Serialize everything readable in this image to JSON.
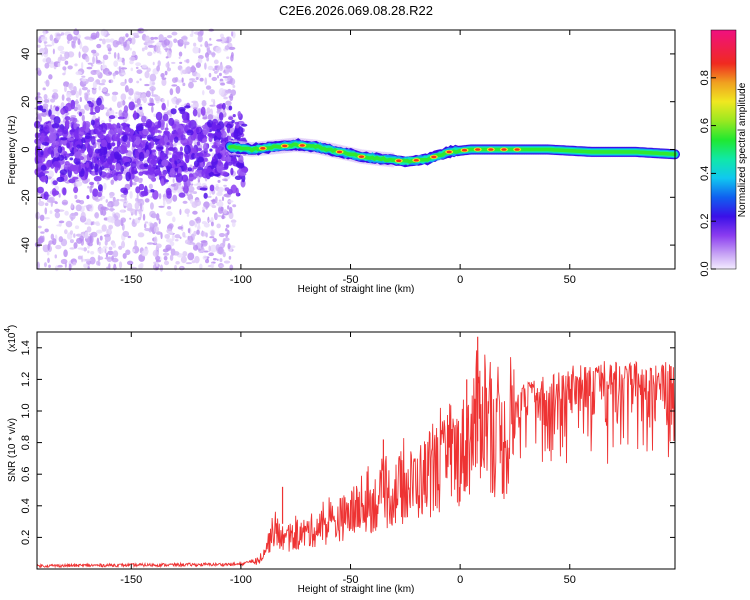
{
  "title": "C2E6.2026.069.08.28.R22",
  "chart_data": [
    {
      "type": "heatmap",
      "name": "spectrogram",
      "xlabel": "Height of straight line (km)",
      "ylabel": "Frequency (Hz)",
      "xlim": [
        -193,
        98
      ],
      "ylim": [
        -50,
        50
      ],
      "xticks": [
        -150,
        -100,
        -50,
        0,
        50
      ],
      "yticks": [
        -40,
        -20,
        0,
        20,
        40
      ],
      "colorbar": {
        "label": "Normalized spectral amplitude",
        "range": [
          0.0,
          1.0
        ],
        "ticks": [
          "0.0",
          "0.2",
          "0.4",
          "0.6",
          "0.8"
        ],
        "tick_values": [
          0.0,
          0.2,
          0.4,
          0.6,
          0.8
        ]
      },
      "ridge": {
        "description_points_x": [
          -105,
          -95,
          -85,
          -75,
          -65,
          -55,
          -45,
          -35,
          -25,
          -15,
          -5,
          5,
          15,
          25,
          40,
          60,
          80,
          98
        ],
        "description_points_freq": [
          1,
          0,
          1,
          2,
          1,
          -1,
          -3,
          -4,
          -5,
          -4,
          -1,
          0,
          0,
          0,
          0,
          -1,
          -1,
          -2
        ]
      }
    },
    {
      "type": "line",
      "name": "snr",
      "xlabel": "Height of straight line (km)",
      "ylabel": "SNR (10 * v/v)",
      "exponent_label": "(x10",
      "exponent_value": "4",
      "exponent_close": ")",
      "xlim": [
        -193,
        98
      ],
      "ylim": [
        0,
        1.5
      ],
      "xticks": [
        -150,
        -100,
        -50,
        0,
        50
      ],
      "yticks": [
        0.2,
        0.4,
        0.6,
        0.8,
        1.0,
        1.2,
        1.4
      ],
      "ytick_labels": [
        "0.2",
        "0.4",
        "0.6",
        "0.8",
        "1.0",
        "1.2",
        "1.4"
      ],
      "color": "#ee3333",
      "trend": {
        "x": [
          -193,
          -100,
          -92,
          -88,
          -85,
          -80,
          -70,
          -60,
          -50,
          -40,
          -30,
          -20,
          -10,
          0,
          5,
          8,
          10,
          12,
          15,
          20,
          25,
          30,
          40,
          50,
          60,
          70,
          80,
          90,
          98
        ],
        "y": [
          0.02,
          0.03,
          0.06,
          0.18,
          0.3,
          0.22,
          0.28,
          0.34,
          0.42,
          0.5,
          0.58,
          0.66,
          0.76,
          0.88,
          1.02,
          1.18,
          1.25,
          1.2,
          1.0,
          0.95,
          1.1,
          1.2,
          1.22,
          1.28,
          1.3,
          1.3,
          1.3,
          1.3,
          1.3
        ]
      },
      "peaks": [
        {
          "x": 8,
          "y": 1.47
        },
        {
          "x": 3,
          "y": 1.2
        },
        {
          "x": -81,
          "y": 0.52
        },
        {
          "x": -35,
          "y": 0.82
        }
      ]
    }
  ]
}
